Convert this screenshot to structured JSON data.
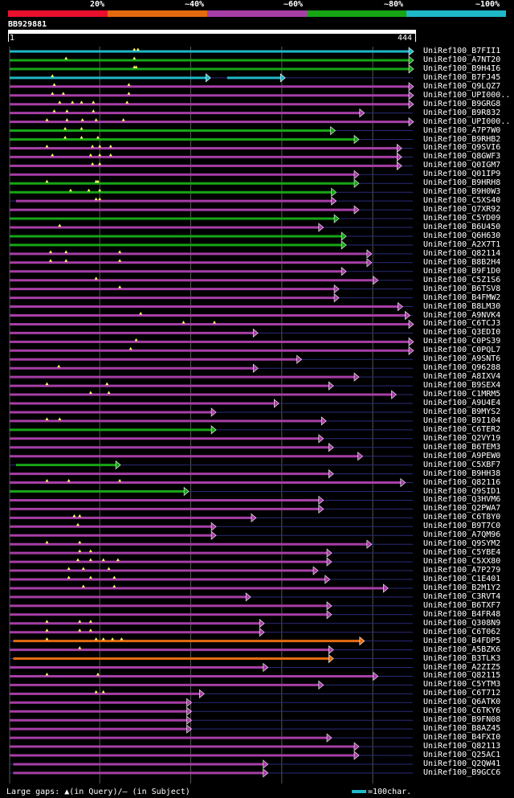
{
  "header": {
    "percents": [
      "20%",
      "~40%",
      "~60%",
      "~80%",
      "~100%"
    ],
    "band_colors": [
      "#e8102b",
      "#e46a10",
      "#a63ea6",
      "#17a516",
      "#1fb8c7"
    ],
    "query_id": "BB929881",
    "query_start": "1",
    "query_end": "444"
  },
  "colors": {
    "cyan": "#1fb8c7",
    "green": "#17a516",
    "magenta": "#a63ea6",
    "orange": "#e46a10",
    "gap": "#2b2b7a",
    "grid": "#555555"
  },
  "hits": [
    {
      "label": "UniRef100_B7FII1",
      "color": "cyan",
      "s": 1,
      "e": 444,
      "gaps": [
        138,
        142
      ]
    },
    {
      "label": "UniRef100_A7NT20",
      "color": "green",
      "s": 1,
      "e": 444,
      "gaps": [
        63,
        138
      ]
    },
    {
      "label": "UniRef100_B9H4I6",
      "color": "green",
      "s": 1,
      "e": 444,
      "gaps": [
        138,
        140
      ]
    },
    {
      "label": "UniRef100_B7FJ45",
      "color": "cyan",
      "s": 1,
      "e": 221,
      "segs": [
        [
          240,
          303
        ]
      ],
      "gaps": [
        48
      ]
    },
    {
      "label": "UniRef100_Q9LQZ7",
      "color": "magenta",
      "s": 1,
      "e": 444,
      "gaps": [
        50,
        132
      ]
    },
    {
      "label": "UniRef100_UPI000..",
      "color": "magenta",
      "s": 1,
      "e": 444,
      "gaps": [
        48,
        60,
        132
      ]
    },
    {
      "label": "UniRef100_B9GRG8",
      "color": "magenta",
      "s": 1,
      "e": 444,
      "gaps": [
        56,
        70,
        80,
        93,
        130
      ]
    },
    {
      "label": "UniRef100_B9R832",
      "color": "magenta",
      "s": 1,
      "e": 390,
      "gaps": [
        50,
        64,
        93
      ]
    },
    {
      "label": "UniRef100_UPI000..",
      "color": "magenta",
      "s": 1,
      "e": 444,
      "gaps": [
        42,
        64,
        81,
        96,
        126
      ]
    },
    {
      "label": "UniRef100_A7P7W0",
      "color": "green",
      "s": 1,
      "e": 358,
      "gaps": [
        62,
        80
      ]
    },
    {
      "label": "UniRef100_B9RHB2",
      "color": "green",
      "s": 1,
      "e": 384,
      "gaps": [
        62,
        80,
        98
      ]
    },
    {
      "label": "UniRef100_Q9SVI6",
      "color": "magenta",
      "s": 1,
      "e": 431,
      "gaps": [
        42,
        92,
        100,
        112
      ]
    },
    {
      "label": "UniRef100_Q8GWF3",
      "color": "magenta",
      "s": 1,
      "e": 431,
      "gaps": [
        48,
        90,
        100,
        112
      ]
    },
    {
      "label": "UniRef100_Q0IGM7",
      "color": "magenta",
      "s": 1,
      "e": 431,
      "gaps": [
        92,
        100
      ]
    },
    {
      "label": "UniRef100_Q01IP9",
      "color": "magenta",
      "s": 1,
      "e": 384,
      "gaps": []
    },
    {
      "label": "UniRef100_B9HRH8",
      "color": "green",
      "s": 1,
      "e": 384,
      "gaps": [
        42,
        96,
        98
      ]
    },
    {
      "label": "UniRef100_B9H0W3",
      "color": "green",
      "s": 1,
      "e": 359,
      "gaps": [
        68,
        88,
        100
      ]
    },
    {
      "label": "UniRef100_C5XS40",
      "color": "magenta",
      "s": 8,
      "e": 359,
      "gaps": [
        96,
        100
      ]
    },
    {
      "label": "UniRef100_Q7XR92",
      "color": "magenta",
      "s": 1,
      "e": 384,
      "gaps": []
    },
    {
      "label": "UniRef100_C5YD09",
      "color": "green",
      "s": 1,
      "e": 362,
      "gaps": []
    },
    {
      "label": "UniRef100_B6U450",
      "color": "magenta",
      "s": 1,
      "e": 345,
      "gaps": [
        56
      ]
    },
    {
      "label": "UniRef100_Q6H630",
      "color": "green",
      "s": 1,
      "e": 370,
      "gaps": []
    },
    {
      "label": "UniRef100_A2X7T1",
      "color": "green",
      "s": 1,
      "e": 370,
      "gaps": []
    },
    {
      "label": "UniRef100_Q82114",
      "color": "magenta",
      "s": 1,
      "e": 398,
      "gaps": [
        46,
        63,
        122
      ]
    },
    {
      "label": "UniRef100_B8B2H4",
      "color": "magenta",
      "s": 1,
      "e": 398,
      "gaps": [
        46,
        63,
        122
      ]
    },
    {
      "label": "UniRef100_B9F1D0",
      "color": "magenta",
      "s": 1,
      "e": 370,
      "gaps": []
    },
    {
      "label": "UniRef100_C5Z1S6",
      "color": "magenta",
      "s": 1,
      "e": 405,
      "gaps": [
        96
      ]
    },
    {
      "label": "UniRef100_B6TSV8",
      "color": "magenta",
      "s": 1,
      "e": 362,
      "gaps": [
        122
      ]
    },
    {
      "label": "UniRef100_B4FMW2",
      "color": "magenta",
      "s": 1,
      "e": 362,
      "gaps": []
    },
    {
      "label": "UniRef100_B8LM30",
      "color": "magenta",
      "s": 1,
      "e": 432,
      "gaps": []
    },
    {
      "label": "UniRef100_A9NVK4",
      "color": "magenta",
      "s": 1,
      "e": 440,
      "gaps": [
        145
      ]
    },
    {
      "label": "UniRef100_C6TCJ3",
      "color": "magenta",
      "s": 1,
      "e": 444,
      "gaps": [
        192,
        226
      ]
    },
    {
      "label": "UniRef100_Q3EDI0",
      "color": "magenta",
      "s": 1,
      "e": 273,
      "gaps": []
    },
    {
      "label": "UniRef100_C0PS39",
      "color": "magenta",
      "s": 1,
      "e": 444,
      "gaps": [
        140
      ]
    },
    {
      "label": "UniRef100_C0PQL7",
      "color": "magenta",
      "s": 1,
      "e": 444,
      "gaps": [
        134
      ]
    },
    {
      "label": "UniRef100_A9SNT6",
      "color": "magenta",
      "s": 1,
      "e": 321,
      "gaps": []
    },
    {
      "label": "UniRef100_Q96288",
      "color": "magenta",
      "s": 1,
      "e": 273,
      "gaps": [
        55
      ]
    },
    {
      "label": "UniRef100_A8IXV4",
      "color": "magenta",
      "s": 1,
      "e": 384,
      "gaps": []
    },
    {
      "label": "UniRef100_B9SEX4",
      "color": "magenta",
      "s": 1,
      "e": 356,
      "gaps": [
        42,
        108
      ]
    },
    {
      "label": "UniRef100_C1MRM5",
      "color": "magenta",
      "s": 1,
      "e": 425,
      "gaps": [
        90,
        110
      ]
    },
    {
      "label": "UniRef100_A9U4E4",
      "color": "magenta",
      "s": 1,
      "e": 296,
      "gaps": []
    },
    {
      "label": "UniRef100_B9MYS2",
      "color": "magenta",
      "s": 1,
      "e": 227,
      "gaps": []
    },
    {
      "label": "UniRef100_B9I104",
      "color": "magenta",
      "s": 1,
      "e": 348,
      "gaps": [
        42,
        56
      ]
    },
    {
      "label": "UniRef100_C6TER2",
      "color": "green",
      "s": 1,
      "e": 227,
      "gaps": []
    },
    {
      "label": "UniRef100_Q2VY19",
      "color": "magenta",
      "s": 1,
      "e": 345,
      "gaps": []
    },
    {
      "label": "UniRef100_B6TEM3",
      "color": "magenta",
      "s": 1,
      "e": 356,
      "gaps": []
    },
    {
      "label": "UniRef100_A9PEW0",
      "color": "magenta",
      "s": 1,
      "e": 388,
      "gaps": []
    },
    {
      "label": "UniRef100_C5XBF7",
      "color": "green",
      "s": 8,
      "e": 122,
      "gaps": []
    },
    {
      "label": "UniRef100_B9HH38",
      "color": "magenta",
      "s": 1,
      "e": 356,
      "gaps": []
    },
    {
      "label": "UniRef100_Q82116",
      "color": "magenta",
      "s": 1,
      "e": 435,
      "gaps": [
        42,
        66,
        122
      ]
    },
    {
      "label": "UniRef100_Q9SID1",
      "color": "green",
      "s": 1,
      "e": 197,
      "gaps": []
    },
    {
      "label": "UniRef100_Q3HVM6",
      "color": "magenta",
      "s": 1,
      "e": 345,
      "gaps": []
    },
    {
      "label": "UniRef100_Q2PWA7",
      "color": "magenta",
      "s": 1,
      "e": 345,
      "gaps": []
    },
    {
      "label": "UniRef100_C6T8Y0",
      "color": "magenta",
      "s": 1,
      "e": 271,
      "gaps": [
        72,
        78
      ]
    },
    {
      "label": "UniRef100_B9T7C0",
      "color": "magenta",
      "s": 1,
      "e": 227,
      "gaps": [
        76
      ]
    },
    {
      "label": "UniRef100_A7QM96",
      "color": "magenta",
      "s": 1,
      "e": 227,
      "gaps": []
    },
    {
      "label": "UniRef100_Q9SYM2",
      "color": "magenta",
      "s": 1,
      "e": 398,
      "gaps": [
        42,
        78
      ]
    },
    {
      "label": "UniRef100_C5YBE4",
      "color": "magenta",
      "s": 1,
      "e": 354,
      "gaps": [
        78,
        90
      ]
    },
    {
      "label": "UniRef100_C5XX80",
      "color": "magenta",
      "s": 1,
      "e": 354,
      "gaps": [
        76,
        90,
        104,
        120
      ]
    },
    {
      "label": "UniRef100_A7P279",
      "color": "magenta",
      "s": 1,
      "e": 339,
      "gaps": [
        66,
        82,
        110
      ]
    },
    {
      "label": "UniRef100_C1E401",
      "color": "magenta",
      "s": 1,
      "e": 352,
      "gaps": [
        66,
        90,
        116
      ]
    },
    {
      "label": "UniRef100_B2M1Y2",
      "color": "magenta",
      "s": 1,
      "e": 416,
      "gaps": [
        82,
        116
      ]
    },
    {
      "label": "UniRef100_C3RVT4",
      "color": "magenta",
      "s": 1,
      "e": 265,
      "gaps": []
    },
    {
      "label": "UniRef100_B6TXF7",
      "color": "magenta",
      "s": 1,
      "e": 354,
      "gaps": []
    },
    {
      "label": "UniRef100_B4FR48",
      "color": "magenta",
      "s": 1,
      "e": 354,
      "gaps": []
    },
    {
      "label": "UniRef100_Q308N9",
      "color": "magenta",
      "s": 1,
      "e": 280,
      "gaps": [
        42,
        78,
        90
      ]
    },
    {
      "label": "UniRef100_C6T062",
      "color": "magenta",
      "s": 1,
      "e": 280,
      "gaps": [
        42,
        78,
        90
      ]
    },
    {
      "label": "UniRef100_B4FDP5",
      "color": "orange",
      "s": 5,
      "e": 390,
      "gaps": [
        42,
        96,
        104,
        114,
        124
      ]
    },
    {
      "label": "UniRef100_A5BZK6",
      "color": "magenta",
      "s": 1,
      "e": 356,
      "gaps": [
        78
      ]
    },
    {
      "label": "UniRef100_B3TLK3",
      "color": "orange",
      "s": 5,
      "e": 356,
      "gaps": []
    },
    {
      "label": "UniRef100_A2ZIZ5",
      "color": "magenta",
      "s": 1,
      "e": 284,
      "gaps": []
    },
    {
      "label": "UniRef100_Q82115",
      "color": "magenta",
      "s": 1,
      "e": 405,
      "gaps": [
        42,
        98
      ]
    },
    {
      "label": "UniRef100_C5YTM3",
      "color": "magenta",
      "s": 1,
      "e": 345,
      "gaps": []
    },
    {
      "label": "UniRef100_C6T712",
      "color": "magenta",
      "s": 1,
      "e": 214,
      "gaps": [
        96,
        104
      ]
    },
    {
      "label": "UniRef100_Q6ATK0",
      "color": "magenta",
      "s": 1,
      "e": 200,
      "gaps": []
    },
    {
      "label": "UniRef100_C6TKY6",
      "color": "magenta",
      "s": 1,
      "e": 200,
      "gaps": []
    },
    {
      "label": "UniRef100_B9FN08",
      "color": "magenta",
      "s": 1,
      "e": 200,
      "gaps": []
    },
    {
      "label": "UniRef100_B8AZ45",
      "color": "magenta",
      "s": 1,
      "e": 200,
      "gaps": []
    },
    {
      "label": "UniRef100_B4FXI0",
      "color": "magenta",
      "s": 1,
      "e": 354,
      "gaps": []
    },
    {
      "label": "UniRef100_Q82113",
      "color": "magenta",
      "s": 1,
      "e": 384,
      "gaps": []
    },
    {
      "label": "UniRef100_Q25AC1",
      "color": "magenta",
      "s": 1,
      "e": 384,
      "gaps": []
    },
    {
      "label": "UniRef100_Q2QW41",
      "color": "magenta",
      "s": 5,
      "e": 284,
      "gaps": []
    },
    {
      "label": "UniRef100_B9GCC6",
      "color": "magenta",
      "s": 5,
      "e": 284,
      "gaps": []
    }
  ],
  "footer": {
    "gaps_text": "Large gaps: ▲(in Query)/– (in Subject)",
    "scale_text": "=100char."
  }
}
